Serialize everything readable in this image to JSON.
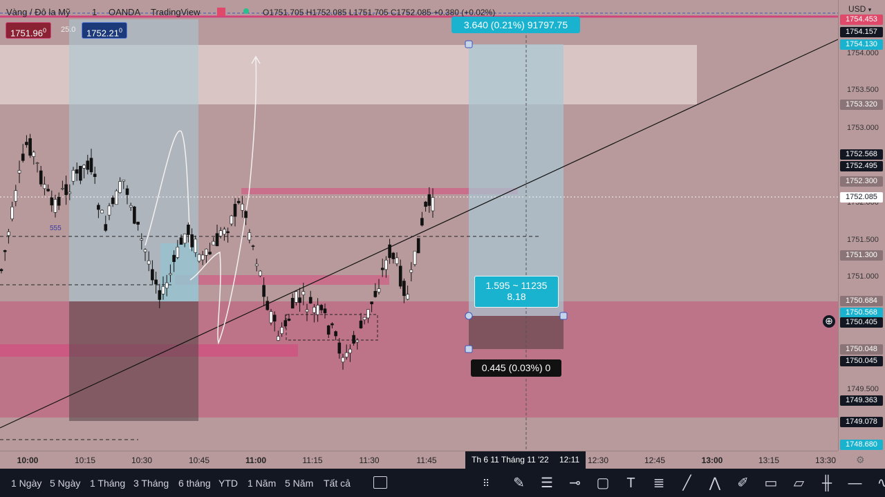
{
  "legend": {
    "symbol": "Vàng / Đô la Mỹ",
    "interval": "1",
    "broker": "OANDA",
    "platform": "TradingView",
    "ohlc": "O1751.705  H1752.085  L1751.705  C1752.085  +0.380 (+0.02%)"
  },
  "price_boxes": {
    "sell": "1751.96",
    "sell_sup": "0",
    "spread": "25.0",
    "buy": "1752.21",
    "buy_sup": "0"
  },
  "currency": "USD",
  "y_ticks": [
    "1754.000",
    "1753.500",
    "1753.000",
    "1752.000",
    "1751.500",
    "1751.000",
    "1750.000",
    "1749.500"
  ],
  "y_labels": [
    {
      "text": "1754.453",
      "style": "pink"
    },
    {
      "text": "1754.157",
      "style": "black"
    },
    {
      "text": "1754.130",
      "style": "cyan"
    },
    {
      "text": "1753.320",
      "style": "grey"
    },
    {
      "text": "1752.568",
      "style": "black"
    },
    {
      "text": "1752.495",
      "style": "black"
    },
    {
      "text": "1752.300",
      "style": "grey"
    },
    {
      "text": "1752.085",
      "style": "white"
    },
    {
      "text": "1751.300",
      "style": "grey"
    },
    {
      "text": "1750.684",
      "style": "grey"
    },
    {
      "text": "1750.568",
      "style": "cyan"
    },
    {
      "text": "1750.405",
      "style": "black"
    },
    {
      "text": "1750.048",
      "style": "grey"
    },
    {
      "text": "1750.045",
      "style": "black"
    },
    {
      "text": "1749.363",
      "style": "black"
    },
    {
      "text": "1749.078",
      "style": "black"
    },
    {
      "text": "1748.680",
      "style": "cyan"
    }
  ],
  "x_ticks": [
    {
      "label": "10:00",
      "bold": true
    },
    {
      "label": "10:15",
      "bold": false
    },
    {
      "label": "10:30",
      "bold": false
    },
    {
      "label": "10:45",
      "bold": false
    },
    {
      "label": "11:00",
      "bold": true
    },
    {
      "label": "11:15",
      "bold": false
    },
    {
      "label": "11:30",
      "bold": false
    },
    {
      "label": "11:45",
      "bold": false
    },
    {
      "label": "12:30",
      "bold": false
    },
    {
      "label": "12:45",
      "bold": false
    },
    {
      "label": "13:00",
      "bold": true
    },
    {
      "label": "13:15",
      "bold": false
    },
    {
      "label": "13:30",
      "bold": false
    }
  ],
  "crosshair_date": "Th 6 11 Tháng 11 '22",
  "crosshair_time": "12:11",
  "measure": {
    "target": "3.640 (0.21%) 91797.75",
    "center_line1": "1.595 ~ 11235",
    "center_line2": "8.18",
    "stop": "0.445 (0.03%) 0"
  },
  "marker_text": "555",
  "ranges": [
    "1 Ngày",
    "5 Ngày",
    "1 Tháng",
    "3 Tháng",
    "6 tháng",
    "YTD",
    "1 Năm",
    "5 Năm",
    "Tất cả"
  ],
  "tools": [
    "drag-handle-icon",
    "brush-icon",
    "fib-retracement-icon",
    "horizontal-ray-icon",
    "rectangle-icon",
    "text-icon",
    "parallel-channel-icon",
    "trend-line-icon",
    "pattern-icon",
    "pencil-icon",
    "callout-icon",
    "comment-icon",
    "long-position-icon",
    "horizontal-line-icon",
    "curve-icon"
  ],
  "colors": {
    "background": "#b89a9c",
    "demand_zone": "#c0607e",
    "supply_zone": "#e6d3d3",
    "measure_cyan": "#1ab3cf"
  }
}
